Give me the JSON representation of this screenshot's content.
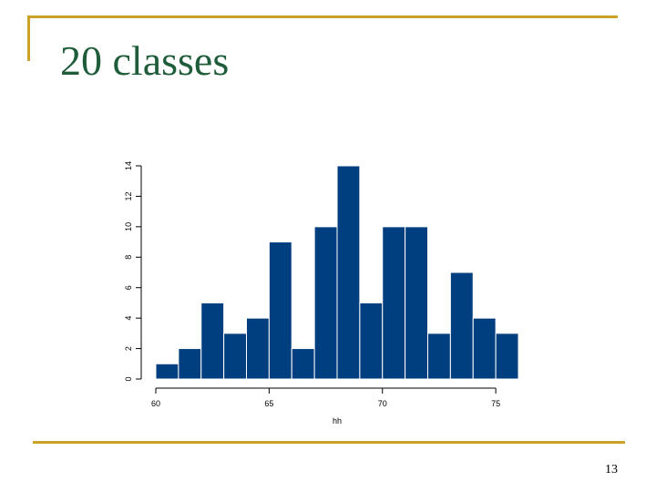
{
  "slide": {
    "title": "20 classes",
    "page_number": "13"
  },
  "colors": {
    "title": "#1f5c3a",
    "frame": "#c9a227",
    "bar": "#003f7f",
    "bar_edge": "#ffffff"
  },
  "chart_data": {
    "type": "bar",
    "title": "",
    "xlabel": "hh",
    "ylabel": "",
    "bin_width": 1,
    "bin_starts": [
      60,
      61,
      62,
      63,
      64,
      65,
      66,
      67,
      68,
      69,
      70,
      71,
      72,
      73,
      74,
      75
    ],
    "values": [
      1,
      2,
      5,
      3,
      4,
      9,
      2,
      10,
      14,
      5,
      10,
      10,
      3,
      7,
      4,
      3
    ],
    "xlim": [
      60,
      76
    ],
    "ylim": [
      0,
      14
    ],
    "xticks": [
      60,
      65,
      70,
      75
    ],
    "yticks": [
      0,
      2,
      4,
      6,
      8,
      10,
      12,
      14
    ],
    "ytick_labels": [
      "0",
      "2",
      "4",
      "6",
      "8",
      "10",
      "12",
      "14"
    ],
    "grid": false,
    "legend": "none"
  }
}
